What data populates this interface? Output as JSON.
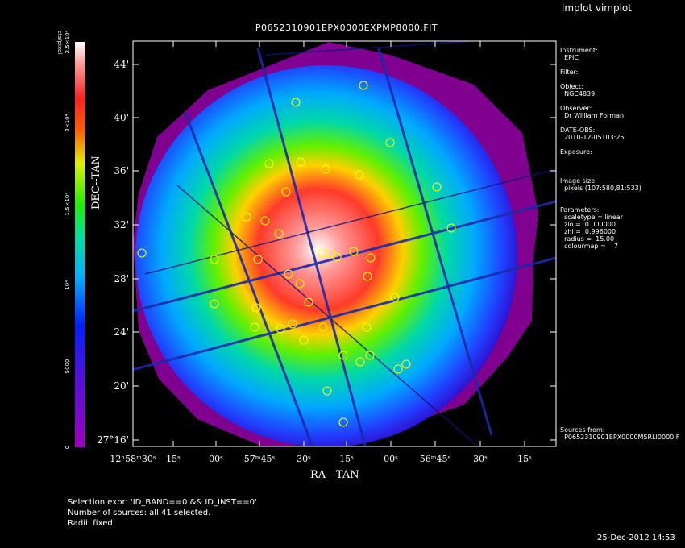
{
  "app_title": "implot vimplot",
  "plot_title": "P0652310901EPX0000EXPMP8000.FIT",
  "axes": {
    "xlabel": "RA---TAN",
    "ylabel": "DEC--TAN"
  },
  "colorbar": {
    "label": "cts/pixel",
    "ticks": [
      "0",
      "5000",
      "10⁴",
      "1.5×10⁴",
      "2×10⁴",
      "2.5×10⁴"
    ],
    "values": [
      0,
      5000,
      10000,
      15000,
      20000,
      25000
    ]
  },
  "chart_data": {
    "type": "heatmap",
    "title": "P0652310901EPX0000EXPMP8000.FIT",
    "xlabel": "RA---TAN",
    "ylabel": "DEC--TAN",
    "x_ticks": [
      "12ʰ58ᵐ30ˢ",
      "15ˢ",
      "00ˢ",
      "57ᵐ45ˢ",
      "30ˢ",
      "15ˢ",
      "00ˢ",
      "56ᵐ45ˢ",
      "30ˢ",
      "15ˢ"
    ],
    "y_ticks": [
      "27°16'",
      "20'",
      "24'",
      "28'",
      "32'",
      "36'",
      "40'",
      "44'"
    ],
    "colorscale": "rainbow",
    "zlim": [
      0,
      25000
    ],
    "source_count": 41
  },
  "info": [
    "Instrument:",
    "  EPIC",
    "",
    "Filter:",
    "",
    "Object:",
    "  NGC4839",
    "",
    "Observer:",
    "  Dr William Forman",
    "",
    "DATE-OBS:",
    "  2010-12-05T03:25",
    "",
    "Exposure:",
    "",
    "",
    "",
    "Image size:",
    "  pixels (107:580,81:533)",
    "",
    "",
    "Parameters:",
    "  scaletype = linear",
    "  zlo =  0.000000",
    "  zhi =  0.996000",
    "  radius =  15.00",
    "  colourmap =    7"
  ],
  "sources_from": [
    "Sources from:",
    "  P0652310901EPX0000MSRLI0000.F"
  ],
  "status": [
    "Selection expr: 'ID_BAND==0 && ID_INST==0'",
    "Number of sources: all 41 selected.",
    "Radii: fixed."
  ],
  "timestamp": "25-Dec-2012 14:53"
}
